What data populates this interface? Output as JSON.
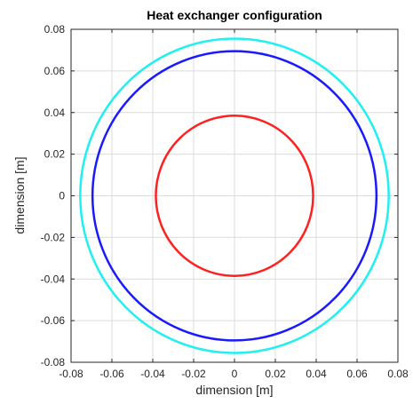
{
  "chart_data": {
    "type": "line",
    "title": "Heat exchanger configuration",
    "xlabel": "dimension [m]",
    "ylabel": "dimension [m]",
    "xlim": [
      -0.08,
      0.08
    ],
    "ylim": [
      -0.08,
      0.08
    ],
    "grid": true,
    "x_ticks": [
      "-0.08",
      "-0.06",
      "-0.04",
      "-0.02",
      "0",
      "0.02",
      "0.04",
      "0.06",
      "0.08"
    ],
    "y_ticks": [
      "0.08",
      "0.06",
      "0.04",
      "0.02",
      "0",
      "-0.02",
      "-0.04",
      "-0.06",
      "-0.08"
    ],
    "series": [
      {
        "shape": "circle",
        "center": [
          0,
          0
        ],
        "radius": 0.0385,
        "color": "#ff2020"
      },
      {
        "shape": "circle",
        "center": [
          0,
          0
        ],
        "radius": 0.0695,
        "color": "#1a1aff"
      },
      {
        "shape": "circle",
        "center": [
          0,
          0
        ],
        "radius": 0.0755,
        "color": "#20f0f0"
      }
    ]
  }
}
